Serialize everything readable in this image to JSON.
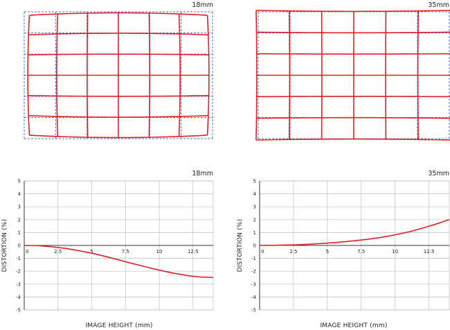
{
  "distortion_grids": [
    {
      "focal": "18mm",
      "type": "barrel"
    },
    {
      "focal": "35mm",
      "type": "pincushion"
    }
  ],
  "colors": {
    "actual": "#e01e26",
    "ideal": "#4a6fd4",
    "grid": "#bdbdbd",
    "axis": "#333333"
  },
  "chart_data": [
    {
      "type": "line",
      "title": "18mm",
      "xlabel": "IMAGE HEIGHT (mm)",
      "ylabel": "DISTORTION (%)",
      "xlim": [
        0,
        14
      ],
      "ylim": [
        -5,
        5
      ],
      "xticks": [
        0,
        2.5,
        5,
        7.5,
        10,
        12.5
      ],
      "xtick_labels": [
        "0",
        "2.5",
        "5",
        "7.5",
        "10",
        "12.5"
      ],
      "yticks": [
        5,
        4,
        3,
        2,
        1,
        0,
        -1,
        -2,
        -3,
        -4,
        -5
      ],
      "grid": true,
      "series": [
        {
          "x": [
            0,
            1,
            2,
            3,
            4,
            5,
            6,
            7,
            8,
            9,
            10,
            11,
            12,
            13,
            14
          ],
          "y": [
            0,
            -0.02,
            -0.1,
            -0.22,
            -0.4,
            -0.6,
            -0.85,
            -1.12,
            -1.4,
            -1.66,
            -1.92,
            -2.14,
            -2.33,
            -2.45,
            -2.48
          ]
        }
      ]
    },
    {
      "type": "line",
      "title": "35mm",
      "xlabel": "IMAGE HEIGHT (mm)",
      "ylabel": "DISTORTION (%)",
      "xlim": [
        0,
        14
      ],
      "ylim": [
        -5,
        5
      ],
      "xticks": [
        0,
        2.5,
        5,
        7.5,
        10,
        12.5
      ],
      "xtick_labels": [
        "0",
        "2.5",
        "5",
        "7.5",
        "10",
        "12.5"
      ],
      "yticks": [
        5,
        4,
        3,
        2,
        1,
        0,
        -1,
        -2,
        -3,
        -4,
        -5
      ],
      "grid": true,
      "series": [
        {
          "x": [
            0,
            1,
            2,
            3,
            4,
            5,
            6,
            7,
            8,
            9,
            10,
            11,
            12,
            13,
            14
          ],
          "y": [
            0,
            0.01,
            0.03,
            0.06,
            0.11,
            0.18,
            0.26,
            0.36,
            0.48,
            0.63,
            0.82,
            1.05,
            1.33,
            1.65,
            2.0
          ]
        }
      ]
    }
  ]
}
